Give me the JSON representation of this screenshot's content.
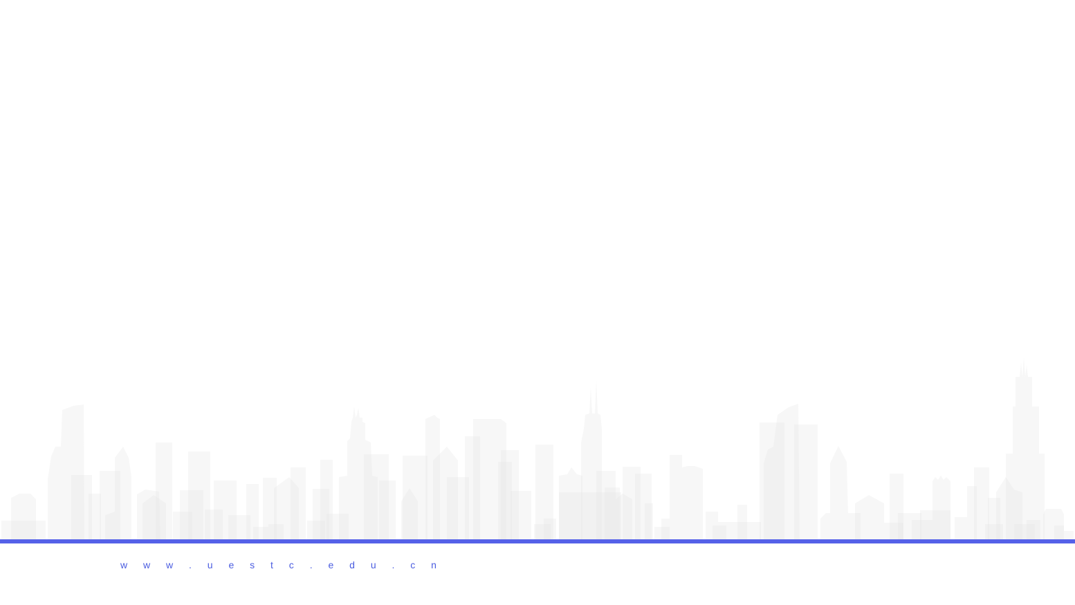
{
  "footer": {
    "url_text": "w w w . u e s t c . e d u . c n"
  },
  "colors": {
    "accent": "#5561e8",
    "url_text": "#4a5ce0",
    "skyline": "#e6e6e6",
    "background": "#ffffff"
  },
  "icons": {
    "skyline": "city-skyline-silhouette-icon"
  }
}
